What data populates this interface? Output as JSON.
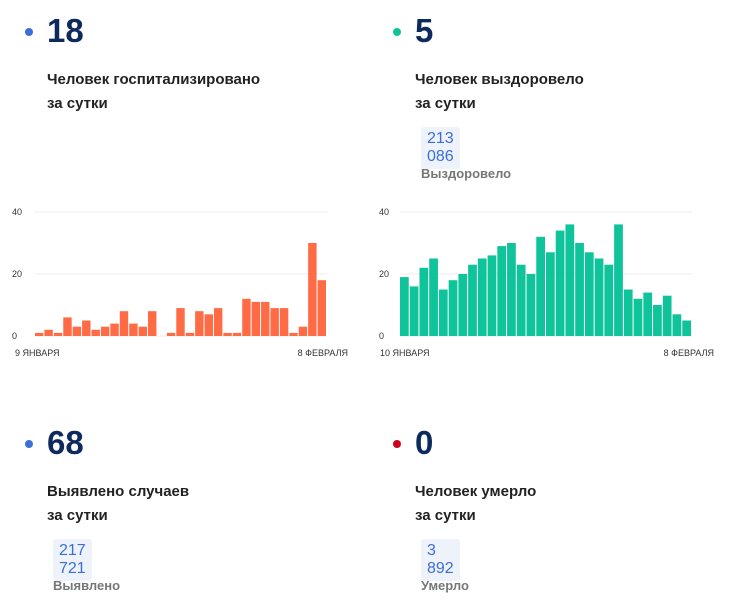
{
  "stats": [
    {
      "value": "18",
      "label1": "Человек госпитализировано",
      "label2": "за сутки",
      "color": "#3a6fd8"
    },
    {
      "value": "5",
      "label1": "Человек выздоровело",
      "label2": "за сутки",
      "total": "213 086",
      "total_label": "Выздоровело",
      "color": "#0fc39a"
    },
    {
      "value": "68",
      "label1": "Выявлено случаев",
      "label2": "за сутки",
      "total": "217 721",
      "total_label": "Выявлено",
      "color": "#3a6fd8"
    },
    {
      "value": "0",
      "label1": "Человек умерло",
      "label2": "за сутки",
      "total": "3 892",
      "total_label": "Умерло",
      "color": "#d0021b"
    }
  ],
  "chart_data": [
    {
      "type": "bar",
      "title": "Госпитализировано",
      "x_start": "9 ЯНВАРЯ",
      "x_end": "8 ФЕВРАЛЯ",
      "ylim": [
        0,
        40
      ],
      "yticks": [
        0,
        20,
        40
      ],
      "color": "#ff6b45",
      "values": [
        1,
        2,
        1,
        6,
        3,
        5,
        2,
        3,
        4,
        8,
        4,
        3,
        8,
        0,
        1,
        9,
        1,
        8,
        7,
        9,
        1,
        1,
        12,
        11,
        11,
        9,
        9,
        1,
        3,
        30,
        18
      ]
    },
    {
      "type": "bar",
      "title": "Выздоровело",
      "x_start": "10 ЯНВАРЯ",
      "x_end": "8 ФЕВРАЛЯ",
      "ylim": [
        0,
        40
      ],
      "yticks": [
        0,
        20,
        40
      ],
      "color": "#0fc39a",
      "values": [
        19,
        16,
        22,
        25,
        15,
        18,
        20,
        23,
        25,
        26,
        29,
        30,
        23,
        20,
        32,
        27,
        34,
        36,
        30,
        27,
        25,
        23,
        36,
        15,
        12,
        14,
        10,
        13,
        7,
        5
      ]
    }
  ]
}
